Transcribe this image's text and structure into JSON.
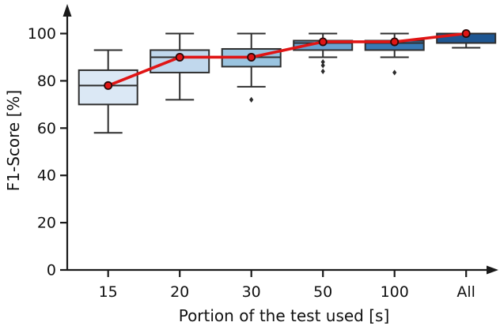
{
  "figure": {
    "background": "#ffffff"
  },
  "chart_data": {
    "type": "boxplot",
    "title": "",
    "xlabel": "Portion of the test used [s]",
    "ylabel": "F1-Score [%]",
    "categories": [
      "15",
      "20",
      "30",
      "50",
      "100",
      "All"
    ],
    "yticks": [
      0,
      20,
      40,
      60,
      80,
      100
    ],
    "ylim": [
      0,
      110
    ],
    "grid": false,
    "legend": "none",
    "axis_color": "#1a1a1a",
    "box_edge_color": "#2e2e2e",
    "outlier_color": "#2b2b2b",
    "boxes": [
      {
        "category": "15",
        "whisker_low": 58,
        "q1": 70,
        "median": 78,
        "q3": 84.5,
        "whisker_high": 93,
        "outliers": [],
        "fill": "#dbe8f5"
      },
      {
        "category": "20",
        "whisker_low": 72,
        "q1": 83.5,
        "median": 90,
        "q3": 93,
        "whisker_high": 100,
        "outliers": [],
        "fill": "#c1d8ed"
      },
      {
        "category": "30",
        "whisker_low": 77.5,
        "q1": 86,
        "median": 90,
        "q3": 93.5,
        "whisker_high": 100,
        "outliers": [
          72
        ],
        "fill": "#9ac4e0"
      },
      {
        "category": "50",
        "whisker_low": 90,
        "q1": 93,
        "median": 96,
        "q3": 97,
        "whisker_high": 100,
        "outliers": [
          88,
          86.5,
          84
        ],
        "fill": "#69a3d1"
      },
      {
        "category": "100",
        "whisker_low": 90,
        "q1": 93,
        "median": 96,
        "q3": 97,
        "whisker_high": 100,
        "outliers": [
          83.5
        ],
        "fill": "#3879b5"
      },
      {
        "category": "All",
        "whisker_low": 94,
        "q1": 96,
        "median": 100,
        "q3": 100,
        "whisker_high": 100,
        "outliers": [],
        "fill": "#1e5692"
      }
    ],
    "mean_line": {
      "color": "#e01515",
      "marker_edge_color": "#2a0808",
      "values": [
        78,
        90,
        90,
        96.5,
        96.5,
        100
      ]
    }
  }
}
